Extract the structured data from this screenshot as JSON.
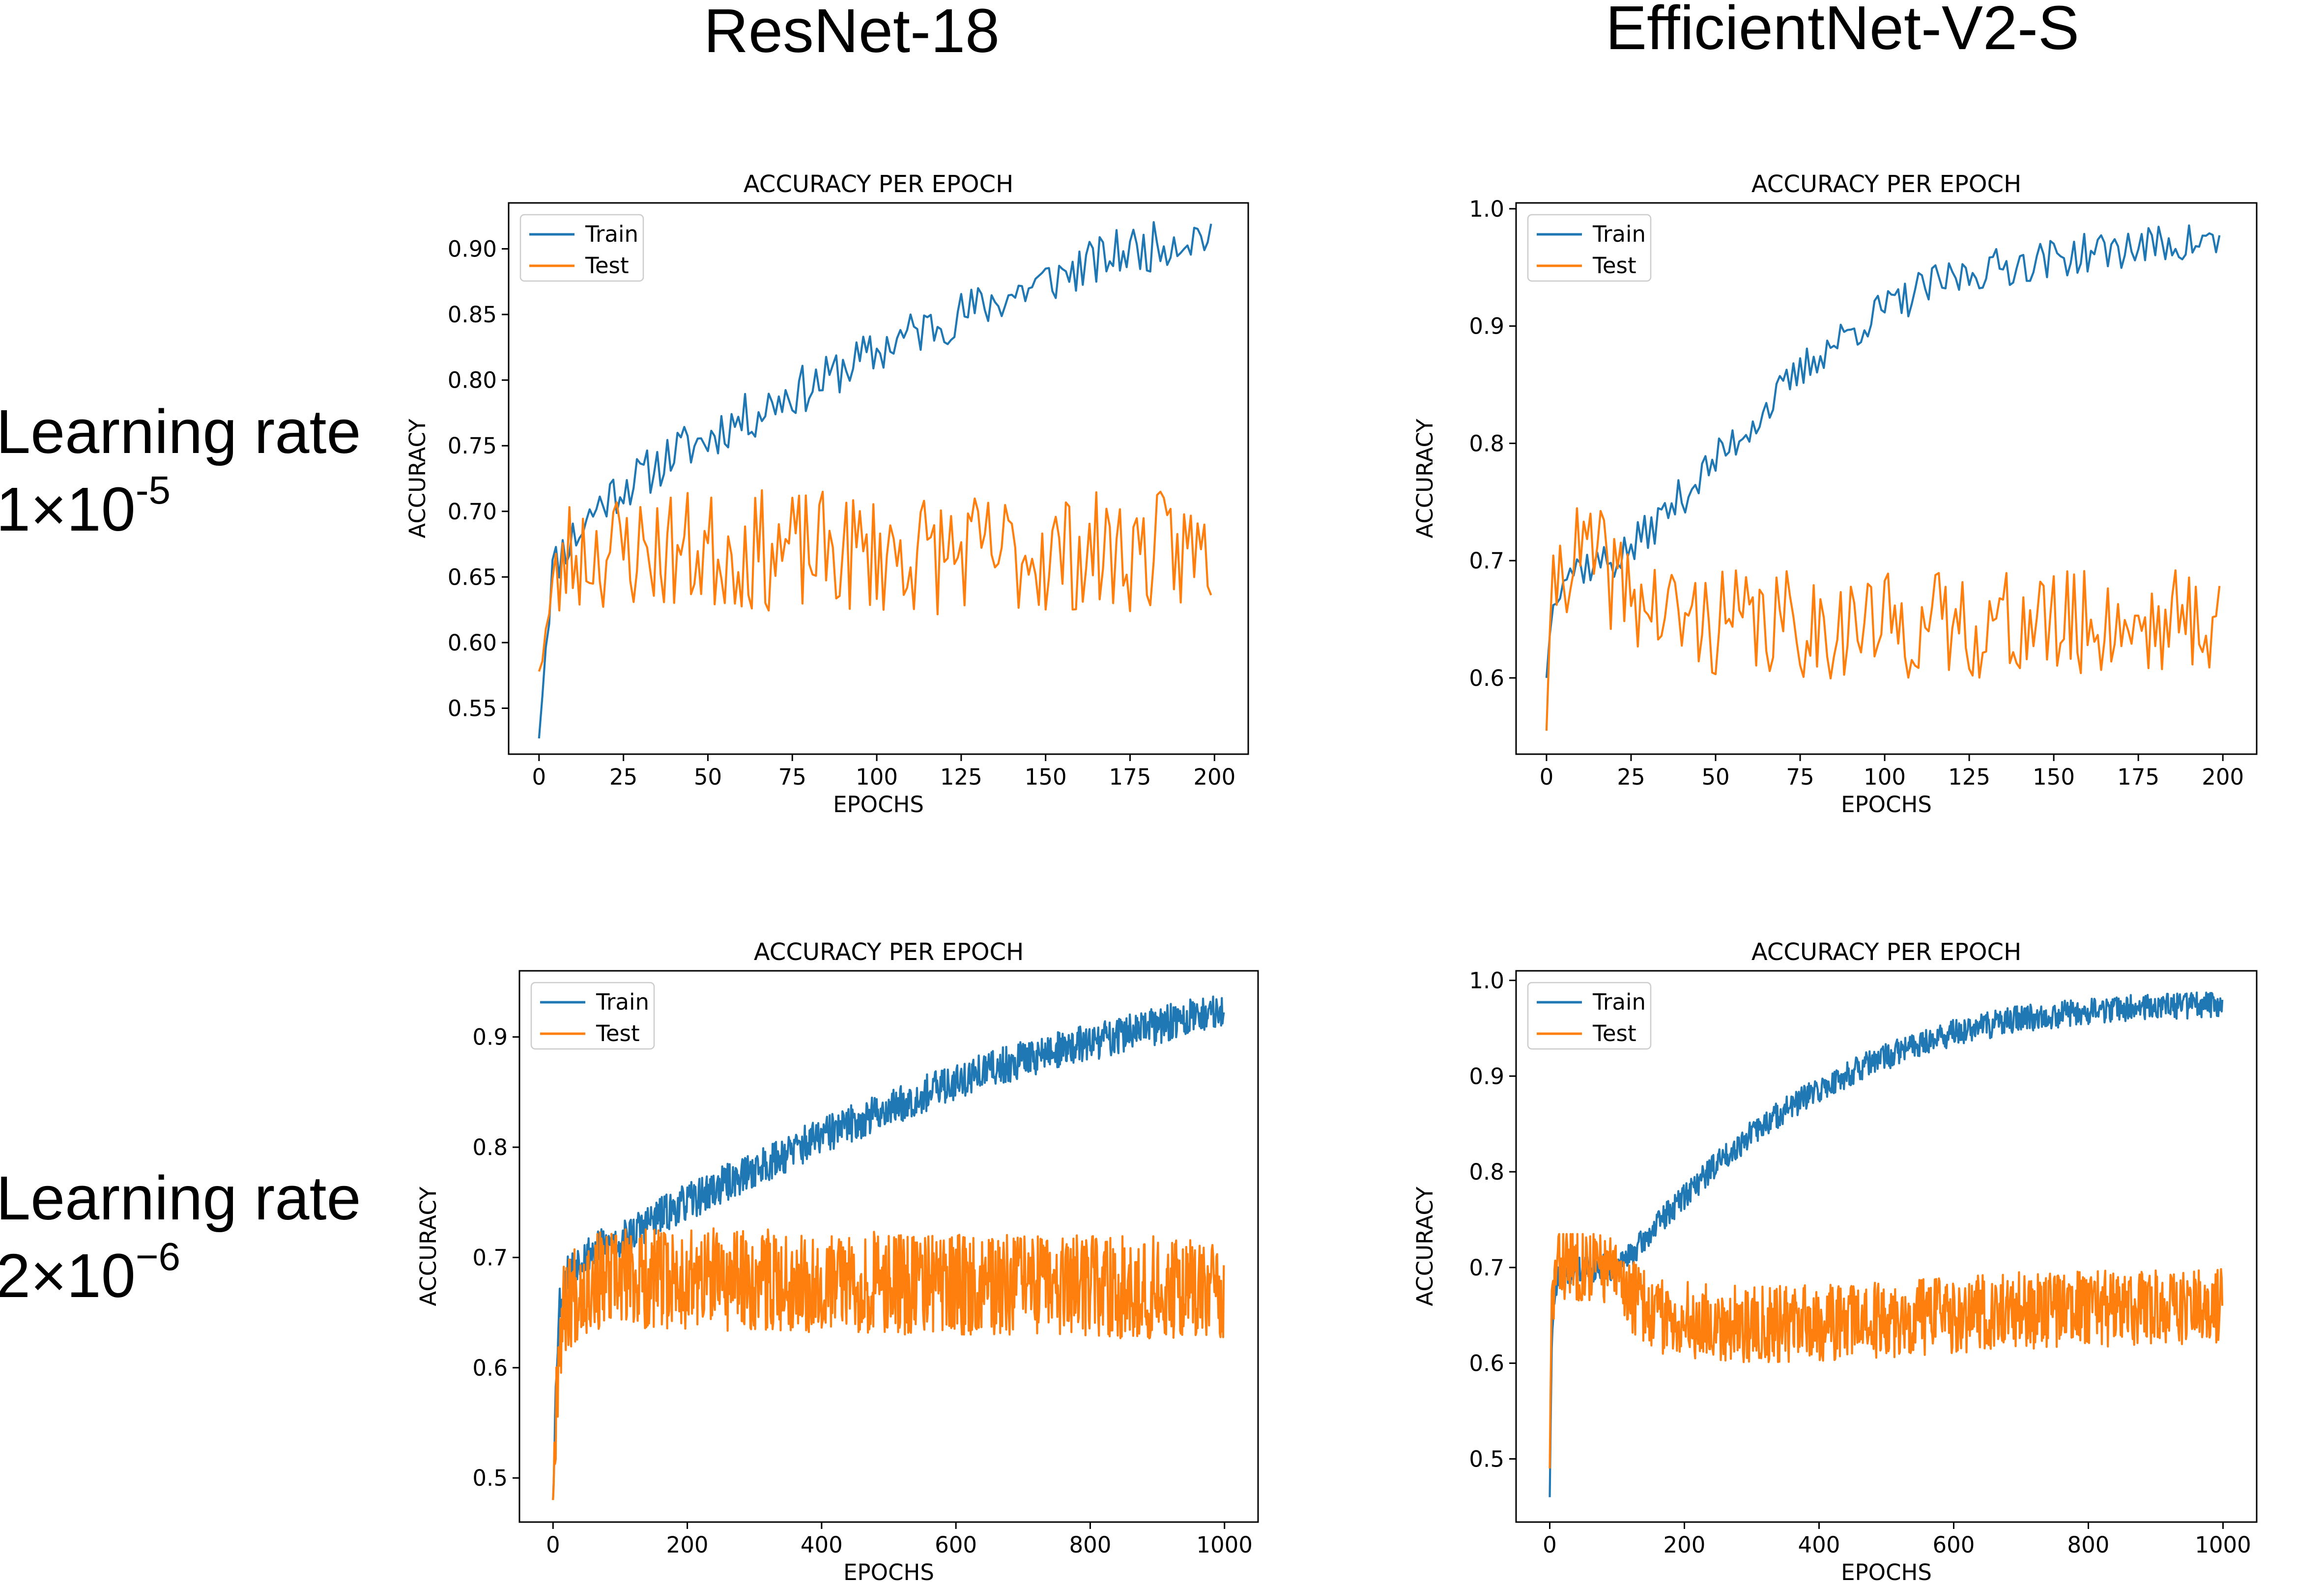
{
  "headers": {
    "col1": "ResNet-18",
    "col2": "EfficientNet-V2-S",
    "row1": {
      "text": "Learning rate",
      "base": "1×10",
      "exp": "-5"
    },
    "row2": {
      "text": "Learning rate",
      "base": "2×10",
      "exp": "−6"
    }
  },
  "colors": {
    "train": "#1f77b4",
    "test": "#ff7f0e"
  },
  "chart_data": [
    {
      "id": "resnet-lr1",
      "type": "line",
      "title": "ACCURACY PER EPOCH",
      "xlabel": "EPOCHS",
      "ylabel": "ACCURACY",
      "xlim": [
        -9,
        210
      ],
      "ylim": [
        0.515,
        0.935
      ],
      "xticks": [
        0,
        25,
        50,
        75,
        100,
        125,
        150,
        175,
        200
      ],
      "yticks": [
        0.55,
        0.6,
        0.65,
        0.7,
        0.75,
        0.8,
        0.85,
        0.9
      ],
      "ytick_labels": [
        "0.55",
        "0.60",
        "0.65",
        "0.70",
        "0.75",
        "0.80",
        "0.85",
        "0.90"
      ],
      "legend": "top-left",
      "series": [
        {
          "name": "Train",
          "n": 200,
          "x": [
            0,
            2,
            4,
            8,
            12,
            16,
            20,
            25,
            30,
            35,
            40,
            45,
            50,
            55,
            60,
            65,
            70,
            75,
            80,
            85,
            90,
            95,
            100,
            105,
            110,
            115,
            120,
            125,
            130,
            135,
            140,
            145,
            150,
            155,
            160,
            165,
            170,
            175,
            180,
            185,
            190,
            195,
            199
          ],
          "y": [
            0.527,
            0.6,
            0.655,
            0.675,
            0.685,
            0.7,
            0.71,
            0.72,
            0.725,
            0.735,
            0.745,
            0.75,
            0.755,
            0.765,
            0.77,
            0.775,
            0.785,
            0.79,
            0.795,
            0.8,
            0.81,
            0.815,
            0.82,
            0.83,
            0.835,
            0.84,
            0.845,
            0.85,
            0.855,
            0.86,
            0.865,
            0.87,
            0.875,
            0.88,
            0.885,
            0.89,
            0.895,
            0.9,
            0.9,
            0.905,
            0.908,
            0.91,
            0.912
          ],
          "noise": 0.012,
          "seed": 11
        },
        {
          "name": "Test",
          "n": 200,
          "x": [
            0,
            3,
            8,
            15,
            30,
            60,
            100,
            150,
            199
          ],
          "y": [
            0.578,
            0.62,
            0.665,
            0.67,
            0.67,
            0.67,
            0.668,
            0.668,
            0.67
          ],
          "noise": 0.03,
          "seed": 23,
          "clip": [
            0.585,
            0.745
          ]
        }
      ]
    },
    {
      "id": "effnet-lr1",
      "type": "line",
      "title": "ACCURACY PER EPOCH",
      "xlabel": "EPOCHS",
      "ylabel": "ACCURACY",
      "xlim": [
        -9,
        210
      ],
      "ylim": [
        0.535,
        1.005
      ],
      "xticks": [
        0,
        25,
        50,
        75,
        100,
        125,
        150,
        175,
        200
      ],
      "yticks": [
        0.6,
        0.7,
        0.8,
        0.9,
        1.0
      ],
      "ytick_labels": [
        "0.6",
        "0.7",
        "0.8",
        "0.9",
        "1.0"
      ],
      "legend": "top-left",
      "series": [
        {
          "name": "Train",
          "n": 200,
          "x": [
            0,
            2,
            5,
            10,
            15,
            20,
            25,
            30,
            35,
            40,
            45,
            50,
            55,
            60,
            65,
            70,
            75,
            80,
            85,
            90,
            95,
            100,
            105,
            110,
            115,
            120,
            125,
            130,
            140,
            150,
            160,
            170,
            180,
            190,
            199
          ],
          "y": [
            0.6,
            0.67,
            0.69,
            0.695,
            0.698,
            0.7,
            0.71,
            0.725,
            0.74,
            0.755,
            0.77,
            0.785,
            0.8,
            0.815,
            0.83,
            0.845,
            0.86,
            0.875,
            0.885,
            0.895,
            0.905,
            0.915,
            0.92,
            0.93,
            0.935,
            0.94,
            0.945,
            0.948,
            0.953,
            0.958,
            0.962,
            0.966,
            0.969,
            0.971,
            0.972
          ],
          "noise": 0.011,
          "seed": 37
        },
        {
          "name": "Test",
          "n": 200,
          "x": [
            0,
            2,
            5,
            10,
            15,
            20,
            30,
            40,
            60,
            100,
            150,
            199
          ],
          "y": [
            0.555,
            0.68,
            0.7,
            0.705,
            0.7,
            0.685,
            0.66,
            0.65,
            0.645,
            0.645,
            0.645,
            0.65
          ],
          "noise": 0.03,
          "seed": 41,
          "clip": [
            0.575,
            0.745
          ]
        }
      ]
    },
    {
      "id": "resnet-lr2",
      "type": "line",
      "title": "ACCURACY PER EPOCH",
      "xlabel": "EPOCHS",
      "ylabel": "ACCURACY",
      "xlim": [
        -50,
        1050
      ],
      "ylim": [
        0.46,
        0.96
      ],
      "xticks": [
        0,
        200,
        400,
        600,
        800,
        1000
      ],
      "yticks": [
        0.5,
        0.6,
        0.7,
        0.8,
        0.9
      ],
      "ytick_labels": [
        "0.5",
        "0.6",
        "0.7",
        "0.8",
        "0.9"
      ],
      "legend": "top-left",
      "series": [
        {
          "name": "Train",
          "n": 1000,
          "x": [
            0,
            5,
            10,
            20,
            40,
            60,
            80,
            100,
            150,
            200,
            250,
            300,
            400,
            500,
            600,
            700,
            800,
            900,
            999
          ],
          "y": [
            0.48,
            0.6,
            0.66,
            0.685,
            0.7,
            0.707,
            0.71,
            0.715,
            0.735,
            0.75,
            0.765,
            0.78,
            0.81,
            0.835,
            0.86,
            0.88,
            0.895,
            0.91,
            0.925
          ],
          "noise": 0.011,
          "seed": 53
        },
        {
          "name": "Test",
          "n": 1000,
          "x": [
            0,
            5,
            10,
            20,
            40,
            100,
            300,
            600,
            999
          ],
          "y": [
            0.48,
            0.58,
            0.63,
            0.66,
            0.675,
            0.68,
            0.68,
            0.675,
            0.672
          ],
          "noise": 0.03,
          "seed": 67,
          "clip": [
            0.475,
            0.76
          ]
        }
      ]
    },
    {
      "id": "effnet-lr2",
      "type": "line",
      "title": "ACCURACY PER EPOCH",
      "xlabel": "EPOCHS",
      "ylabel": "ACCURACY",
      "xlim": [
        -50,
        1050
      ],
      "ylim": [
        0.434,
        1.01
      ],
      "xticks": [
        0,
        200,
        400,
        600,
        800,
        1000
      ],
      "yticks": [
        0.5,
        0.6,
        0.7,
        0.8,
        0.9,
        1.0
      ],
      "ytick_labels": [
        "0.5",
        "0.6",
        "0.7",
        "0.8",
        "0.9",
        "1.0"
      ],
      "legend": "top-left",
      "series": [
        {
          "name": "Train",
          "n": 1000,
          "x": [
            0,
            3,
            10,
            20,
            50,
            80,
            100,
            130,
            160,
            200,
            250,
            300,
            350,
            400,
            450,
            500,
            550,
            600,
            650,
            700,
            800,
            900,
            999
          ],
          "y": [
            0.46,
            0.62,
            0.685,
            0.695,
            0.698,
            0.7,
            0.7,
            0.72,
            0.745,
            0.775,
            0.81,
            0.84,
            0.865,
            0.885,
            0.905,
            0.92,
            0.935,
            0.945,
            0.953,
            0.96,
            0.968,
            0.973,
            0.975
          ],
          "noise": 0.009,
          "seed": 71
        },
        {
          "name": "Test",
          "n": 1000,
          "x": [
            0,
            3,
            10,
            20,
            50,
            80,
            100,
            130,
            160,
            200,
            300,
            500,
            700,
            999
          ],
          "y": [
            0.49,
            0.66,
            0.7,
            0.705,
            0.705,
            0.7,
            0.69,
            0.665,
            0.65,
            0.645,
            0.64,
            0.645,
            0.655,
            0.66
          ],
          "noise": 0.026,
          "seed": 83,
          "clip": [
            0.555,
            0.735
          ]
        }
      ]
    }
  ]
}
